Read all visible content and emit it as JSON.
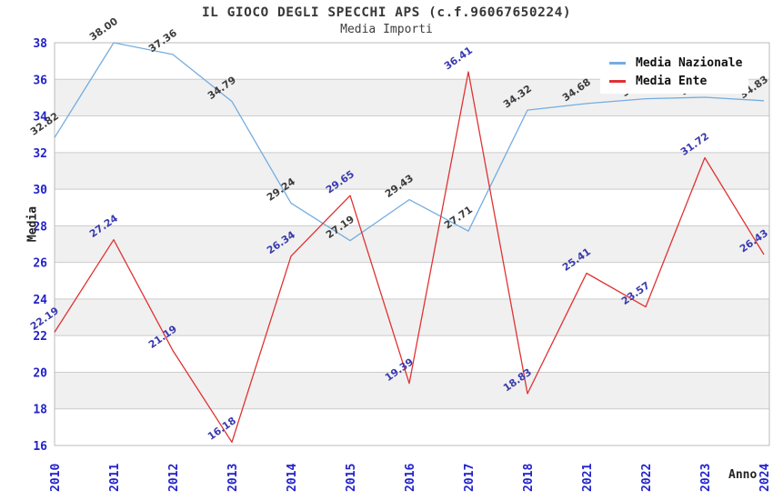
{
  "title": "IL GIOCO DEGLI SPECCHI APS (c.f.96067650224)",
  "subtitle": "Media Importi",
  "chart_data": {
    "type": "line",
    "categories": [
      "2010",
      "2011",
      "2012",
      "2013",
      "2014",
      "2015",
      "2016",
      "2017",
      "2018",
      "2021",
      "2022",
      "2023",
      "2024"
    ],
    "series": [
      {
        "name": "Media Nazionale",
        "color": "#74ADE0",
        "label_color": "#3C3C3C",
        "values": [
          32.82,
          38.0,
          37.36,
          34.79,
          29.24,
          27.19,
          29.43,
          27.71,
          34.32,
          34.68,
          34.94,
          35.02,
          34.83
        ],
        "hidden_label_indices": [
          10,
          11
        ]
      },
      {
        "name": "Media Ente",
        "color": "#E03232",
        "label_color": "#3A3AAE",
        "values": [
          22.19,
          27.24,
          21.19,
          16.18,
          26.34,
          29.65,
          19.39,
          36.41,
          18.83,
          25.41,
          23.57,
          31.72,
          26.43
        ],
        "hidden_label_indices": []
      }
    ],
    "xlabel": "Anno",
    "ylabel": "Media",
    "ylim": [
      16,
      38
    ],
    "ytick_step": 2,
    "yticks": [
      16,
      18,
      20,
      22,
      24,
      26,
      28,
      30,
      32,
      34,
      36,
      38
    ],
    "legend_position": "top-right",
    "grid": "horizontal gridlines with alternating gray bands",
    "band_color": "#F0F0F0",
    "gridline_color": "#CCCCCC",
    "tick_label_color": "#2222CC",
    "labels_hidden_by_legend": {
      "series": "Media Nazionale",
      "categories": [
        "2022",
        "2023"
      ]
    }
  }
}
